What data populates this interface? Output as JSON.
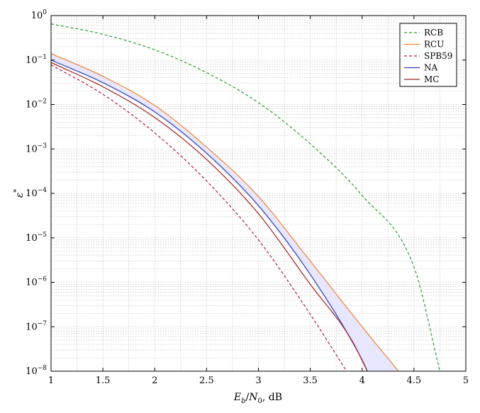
{
  "chart_data": {
    "type": "line",
    "xlabel": "E_b/N_0, dB",
    "ylabel": "ε*",
    "xlim": [
      1,
      5
    ],
    "ylim": [
      1e-08,
      1
    ],
    "yscale": "log",
    "grid": true,
    "legend_position": "top-right",
    "x_ticks": [
      "1",
      "1.5",
      "2",
      "2.5",
      "3",
      "3.5",
      "4",
      "4.5",
      "5"
    ],
    "y_ticks": [
      {
        "base": "10",
        "exp": "0"
      },
      {
        "base": "10",
        "exp": "−1"
      },
      {
        "base": "10",
        "exp": "−2"
      },
      {
        "base": "10",
        "exp": "−3"
      },
      {
        "base": "10",
        "exp": "−4"
      },
      {
        "base": "10",
        "exp": "−5"
      },
      {
        "base": "10",
        "exp": "−6"
      },
      {
        "base": "10",
        "exp": "−7"
      },
      {
        "base": "10",
        "exp": "−8"
      }
    ],
    "band": {
      "between": [
        "NA",
        "RCU"
      ],
      "color": "#e4e4ff"
    },
    "series": [
      {
        "name": "RCB",
        "color": "#2ca02c",
        "dash": "dashed",
        "points": [
          [
            1,
            0.65
          ],
          [
            1.5,
            0.38
          ],
          [
            2,
            0.17
          ],
          [
            2.5,
            0.052
          ],
          [
            3,
            0.011
          ],
          [
            3.5,
            0.0013
          ],
          [
            4,
            9e-05
          ],
          [
            4.5,
            2.2e-06
          ],
          [
            4.75,
            1e-08
          ]
        ]
      },
      {
        "name": "RCU",
        "color": "#f08030",
        "dash": "solid",
        "points": [
          [
            1,
            0.14
          ],
          [
            1.5,
            0.043
          ],
          [
            2,
            0.0095
          ],
          [
            2.5,
            0.0011
          ],
          [
            3,
            8.5e-05
          ],
          [
            3.5,
            3e-06
          ],
          [
            4,
            1e-07
          ],
          [
            4.35,
            1e-08
          ]
        ]
      },
      {
        "name": "SPB59",
        "color": "#b02040",
        "dash": "dashed",
        "points": [
          [
            1,
            0.078
          ],
          [
            1.5,
            0.017
          ],
          [
            2,
            0.0023
          ],
          [
            2.5,
            0.00019
          ],
          [
            3,
            9e-06
          ],
          [
            3.5,
            1.9e-07
          ],
          [
            3.85,
            1e-08
          ]
        ]
      },
      {
        "name": "NA",
        "color": "#3040b0",
        "dash": "solid",
        "points": [
          [
            1,
            0.1
          ],
          [
            1.5,
            0.031
          ],
          [
            2,
            0.0068
          ],
          [
            2.5,
            0.0008
          ],
          [
            3,
            5.3e-05
          ],
          [
            3.5,
            1.5e-06
          ],
          [
            4,
            1.8e-08
          ],
          [
            4.05,
            1e-08
          ]
        ]
      },
      {
        "name": "MC",
        "color": "#a02020",
        "dash": "solid",
        "points": [
          [
            1,
            0.088
          ],
          [
            1.5,
            0.025
          ],
          [
            2,
            0.0051
          ],
          [
            2.5,
            0.00058
          ],
          [
            3,
            3.5e-05
          ],
          [
            3.5,
            9e-07
          ],
          [
            3.9,
            5e-08
          ],
          [
            4.05,
            1e-08
          ]
        ]
      }
    ]
  }
}
